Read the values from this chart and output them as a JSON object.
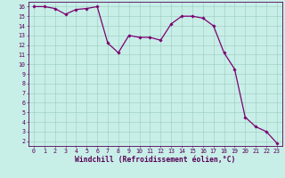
{
  "xlabel": "Windchill (Refroidissement éolien,°C)",
  "x_values": [
    0,
    1,
    2,
    3,
    4,
    5,
    6,
    7,
    8,
    9,
    10,
    11,
    12,
    13,
    14,
    15,
    16,
    17,
    18,
    19,
    20,
    21,
    22,
    23
  ],
  "y_values": [
    16.0,
    16.0,
    15.8,
    15.2,
    15.7,
    15.8,
    16.0,
    12.2,
    11.2,
    13.0,
    12.8,
    12.8,
    12.5,
    14.2,
    15.0,
    15.0,
    14.8,
    14.0,
    11.2,
    9.5,
    4.5,
    3.5,
    3.0,
    1.8
  ],
  "line_color": "#7B0070",
  "marker_color": "#7B0070",
  "bg_color": "#C8EEE8",
  "grid_color": "#99CCBB",
  "axis_color": "#550055",
  "spine_color": "#550055",
  "xlim": [
    -0.5,
    23.5
  ],
  "ylim": [
    1.5,
    16.5
  ],
  "yticks": [
    2,
    3,
    4,
    5,
    6,
    7,
    8,
    9,
    10,
    11,
    12,
    13,
    14,
    15,
    16
  ],
  "xticks": [
    0,
    1,
    2,
    3,
    4,
    5,
    6,
    7,
    8,
    9,
    10,
    11,
    12,
    13,
    14,
    15,
    16,
    17,
    18,
    19,
    20,
    21,
    22,
    23
  ],
  "tick_fontsize": 4.8,
  "label_fontsize": 5.8
}
